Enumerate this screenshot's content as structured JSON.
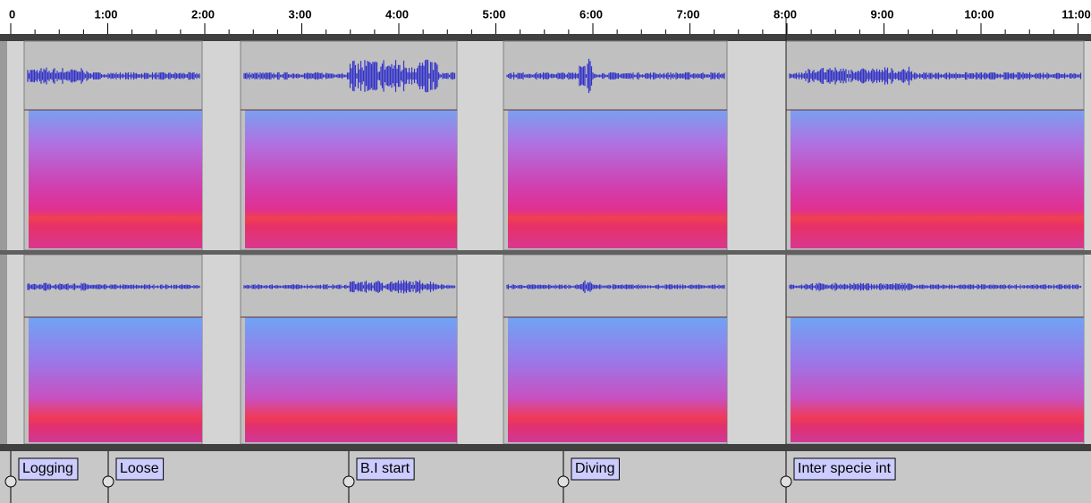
{
  "ruler": {
    "ticks": [
      "0",
      "1:00",
      "2:00",
      "3:00",
      "4:00",
      "5:00",
      "6:00",
      "7:00",
      "8:00",
      "9:00",
      "10:00",
      "11:00"
    ]
  },
  "label_track": {
    "labels": [
      "Logging",
      "Loose",
      "B.I start",
      "Diving",
      "Inter specie int"
    ]
  }
}
